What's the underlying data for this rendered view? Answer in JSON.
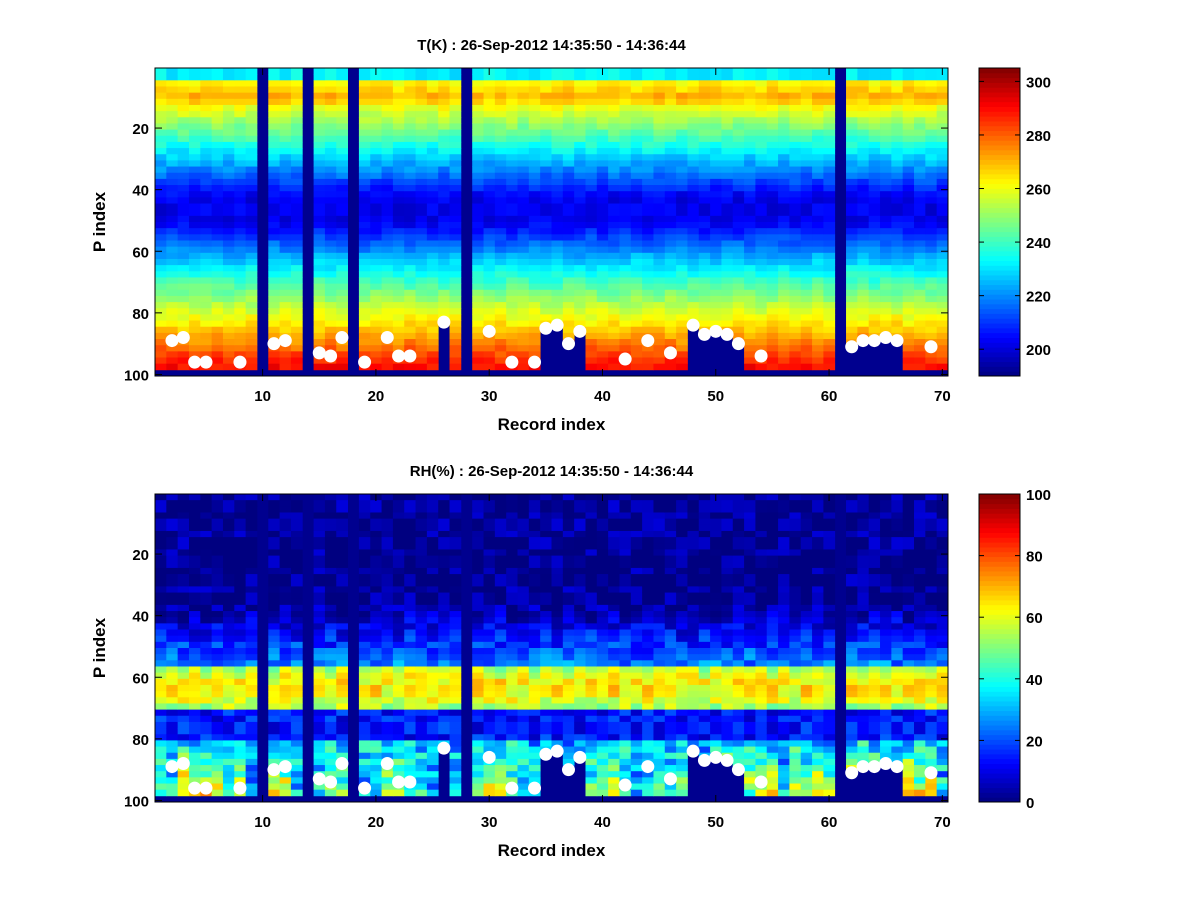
{
  "chart_data": [
    {
      "type": "heatmap",
      "title": "T(K) : 26-Sep-2012 14:35:50 - 14:36:44",
      "xlabel": "Record index",
      "ylabel": "P index",
      "xlim": [
        0.5,
        70.5
      ],
      "ylim": [
        0.5,
        100.5
      ],
      "y_reversed": true,
      "xticks": [
        10,
        20,
        30,
        40,
        50,
        60,
        70
      ],
      "yticks": [
        20,
        40,
        60,
        80,
        100
      ],
      "colormap": "jet",
      "colorbar": {
        "range": [
          190,
          305
        ],
        "ticks": [
          200,
          220,
          240,
          260,
          280,
          300
        ]
      },
      "missing_records": [
        10,
        14,
        18,
        28,
        61
      ],
      "profile_description": "Warm (~265-280K) near P 5-12, cold minimum (~200K) near P 40-45, cyan ~230K around P 60-65, warm ~280-295K toward P 85-98; P 99-100 fill value",
      "surface_markers": {
        "records": [
          2,
          3,
          4,
          5,
          8,
          11,
          12,
          15,
          16,
          17,
          19,
          21,
          22,
          23,
          26,
          30,
          32,
          34,
          35,
          36,
          37,
          38,
          42,
          44,
          46,
          48,
          49,
          50,
          51,
          52,
          54,
          62,
          63,
          64,
          65,
          66,
          69
        ],
        "p_index": [
          89,
          88,
          96,
          96,
          96,
          90,
          89,
          93,
          94,
          88,
          96,
          88,
          94,
          94,
          83,
          86,
          96,
          96,
          85,
          84,
          90,
          86,
          95,
          89,
          93,
          84,
          87,
          86,
          87,
          90,
          94,
          91,
          89,
          89,
          88,
          89,
          91
        ]
      }
    },
    {
      "type": "heatmap",
      "title": "RH(%) : 26-Sep-2012 14:35:50 - 14:36:44",
      "xlabel": "Record index",
      "ylabel": "P index",
      "xlim": [
        0.5,
        70.5
      ],
      "ylim": [
        0.5,
        100.5
      ],
      "y_reversed": true,
      "xticks": [
        10,
        20,
        30,
        40,
        50,
        60,
        70
      ],
      "yticks": [
        20,
        40,
        60,
        80,
        100
      ],
      "colormap": "jet",
      "colorbar": {
        "range": [
          0,
          100
        ],
        "ticks": [
          0,
          20,
          40,
          60,
          80,
          100
        ]
      },
      "missing_records": [
        10,
        14,
        18,
        28,
        61
      ],
      "profile_description": "Near 0% above P 35, moist band (~50-75%) at P 58-68, dry layer P 70-80, moist near surface (up to ~100%) below P 85",
      "surface_markers": {
        "records": [
          2,
          3,
          4,
          5,
          8,
          11,
          12,
          15,
          16,
          17,
          19,
          21,
          22,
          23,
          26,
          30,
          32,
          34,
          35,
          36,
          37,
          38,
          42,
          44,
          46,
          48,
          49,
          50,
          51,
          52,
          54,
          62,
          63,
          64,
          65,
          66,
          69
        ],
        "p_index": [
          89,
          88,
          96,
          96,
          96,
          90,
          89,
          93,
          94,
          88,
          96,
          88,
          94,
          94,
          83,
          86,
          96,
          96,
          85,
          84,
          90,
          86,
          95,
          89,
          93,
          84,
          87,
          86,
          87,
          90,
          94,
          91,
          89,
          89,
          88,
          89,
          91
        ]
      }
    }
  ]
}
